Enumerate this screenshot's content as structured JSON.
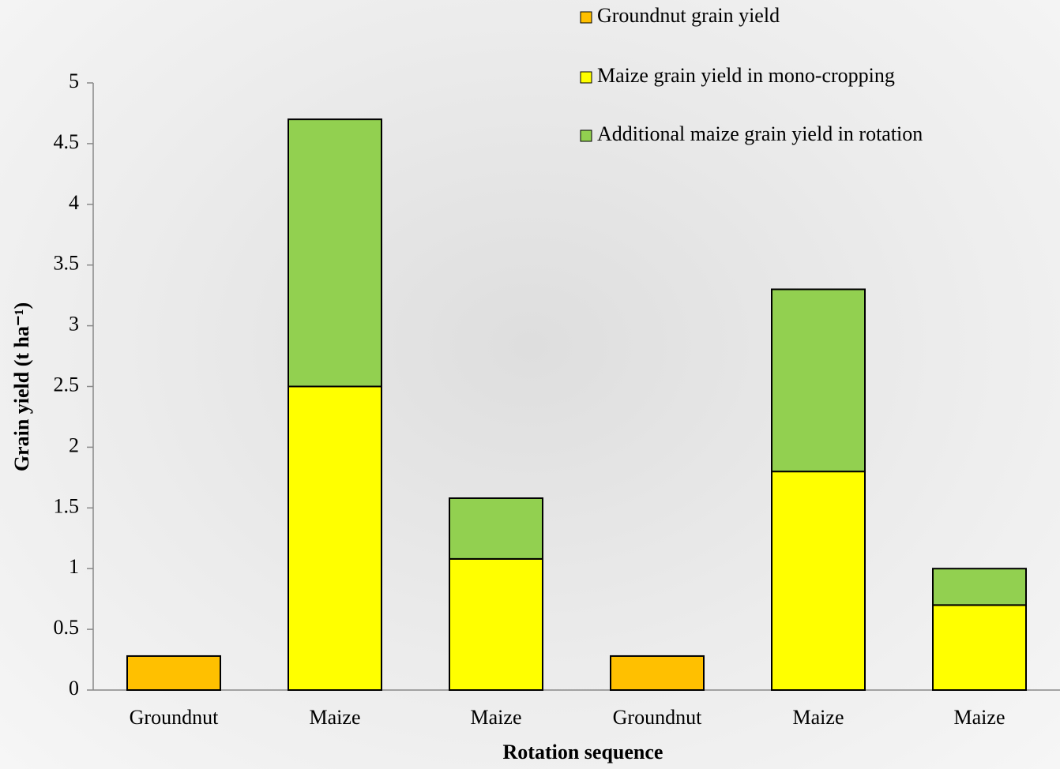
{
  "chart_data": {
    "type": "stacked_bar",
    "x_label": "Rotation sequence",
    "y_label": "Grain yield (t ha⁻¹)",
    "categories": [
      "Groundnut",
      "Maize",
      "Maize",
      "Groundnut",
      "Maize",
      "Maize"
    ],
    "series": [
      {
        "name": "Groundnut grain yield",
        "color": "#ffc000",
        "values": [
          0.28,
          null,
          null,
          0.28,
          null,
          null
        ]
      },
      {
        "name": "Maize grain yield in mono-cropping",
        "color": "#ffff00",
        "values": [
          null,
          2.5,
          1.08,
          null,
          1.8,
          0.7
        ]
      },
      {
        "name": "Additional maize grain yield in rotation",
        "color": "#92d050",
        "values": [
          null,
          2.2,
          0.5,
          null,
          1.5,
          0.3
        ]
      }
    ],
    "ylim": [
      0,
      5
    ],
    "yticks": [
      0,
      0.5,
      1,
      1.5,
      2,
      2.5,
      3,
      3.5,
      4,
      4.5,
      5
    ],
    "legend": "top-right"
  }
}
